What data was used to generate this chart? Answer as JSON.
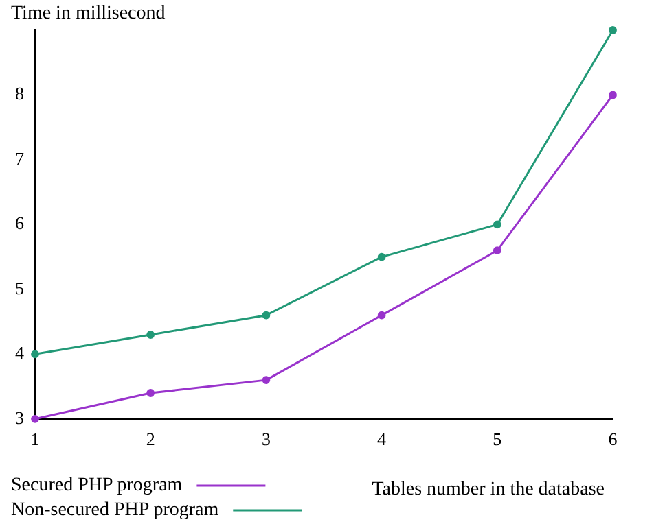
{
  "chart_data": {
    "type": "line",
    "xlabel": "Tables number in the database",
    "ylabel": "Time in millisecond",
    "x": [
      1,
      2,
      3,
      4,
      5,
      6
    ],
    "series": [
      {
        "name": "Secured PHP program",
        "color": "#9933cc",
        "values": [
          3,
          3.4,
          3.6,
          4.6,
          5.6,
          8
        ]
      },
      {
        "name": "Non-secured PHP program",
        "color": "#229977",
        "values": [
          4,
          4.3,
          4.6,
          5.5,
          6,
          9
        ]
      }
    ],
    "xlim": [
      1,
      6
    ],
    "xticks": [
      1,
      2,
      3,
      4,
      5,
      6
    ],
    "ylim": [
      3,
      9
    ],
    "yticks": [
      3,
      4,
      5,
      6,
      7,
      8
    ],
    "grid": false,
    "legend": "bottom left",
    "marker": "circle",
    "line_style": "solid"
  }
}
